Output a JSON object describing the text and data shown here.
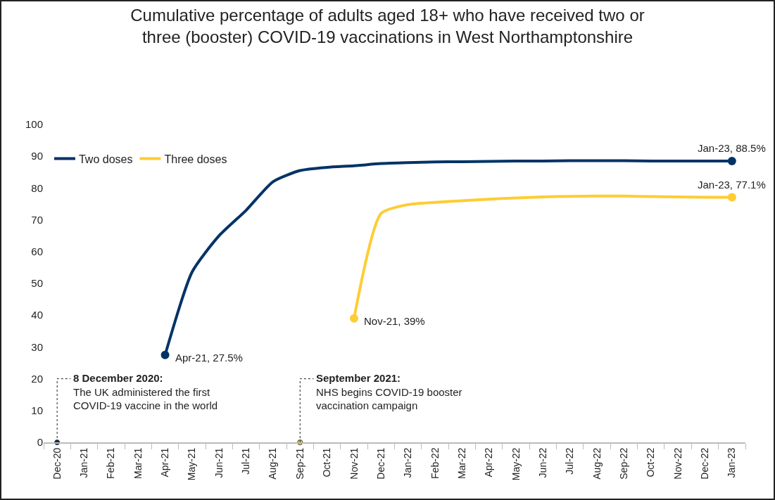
{
  "chart_data": {
    "type": "line",
    "title": "Cumulative percentage of adults aged 18+ who have received two or\nthree (booster) COVID-19 vaccinations in West Northamptonshire",
    "categories": [
      "Dec-20",
      "Jan-21",
      "Feb-21",
      "Mar-21",
      "Apr-21",
      "May-21",
      "Jun-21",
      "Jul-21",
      "Aug-21",
      "Sep-21",
      "Oct-21",
      "Nov-21",
      "Dec-21",
      "Jan-22",
      "Feb-22",
      "Mar-22",
      "Apr-22",
      "May-22",
      "Jun-22",
      "Jul-22",
      "Aug-22",
      "Sep-22",
      "Oct-22",
      "Nov-22",
      "Dec-22",
      "Jan-23"
    ],
    "series": [
      {
        "name": "Two doses",
        "color": "#003366",
        "values": [
          null,
          null,
          null,
          null,
          27.5,
          53.6,
          65,
          73,
          82,
          85.5,
          86.5,
          87,
          87.7,
          88,
          88.2,
          88.3,
          88.4,
          88.5,
          88.5,
          88.6,
          88.6,
          88.6,
          88.5,
          88.5,
          88.5,
          88.5
        ],
        "value_labels": [
          null,
          null,
          null,
          null,
          "Apr-21, 27.5%",
          null,
          null,
          null,
          null,
          null,
          null,
          null,
          null,
          null,
          null,
          null,
          null,
          null,
          null,
          null,
          null,
          null,
          null,
          null,
          null,
          "Jan-23, 88.5%"
        ]
      },
      {
        "name": "Three doses",
        "color": "#ffcc33",
        "values": [
          null,
          null,
          null,
          null,
          null,
          null,
          null,
          null,
          null,
          null,
          null,
          39,
          72,
          74.8,
          75.5,
          76,
          76.5,
          76.9,
          77.2,
          77.4,
          77.5,
          77.5,
          77.3,
          77.2,
          77.1,
          77.1
        ],
        "value_labels": [
          null,
          null,
          null,
          null,
          null,
          null,
          null,
          null,
          null,
          null,
          null,
          "Nov-21, 39%",
          null,
          null,
          null,
          null,
          null,
          null,
          null,
          null,
          null,
          null,
          null,
          null,
          null,
          "Jan-23, 77.1%"
        ]
      }
    ],
    "ylim": [
      0,
      100
    ],
    "yticks": [
      0,
      10,
      20,
      30,
      40,
      50,
      60,
      70,
      80,
      90,
      100
    ],
    "grid": false,
    "legend": "top left",
    "annotations": [
      {
        "text": "8 December 2020:\nThe UK administered the first\nCOVID-19 vaccine in the world",
        "x": "Dec-20",
        "y": 0
      },
      {
        "text": "September 2021:\nNHS begins COVID-19 booster\nvaccination campaign",
        "x": "Sep-21",
        "y": 0
      }
    ]
  }
}
